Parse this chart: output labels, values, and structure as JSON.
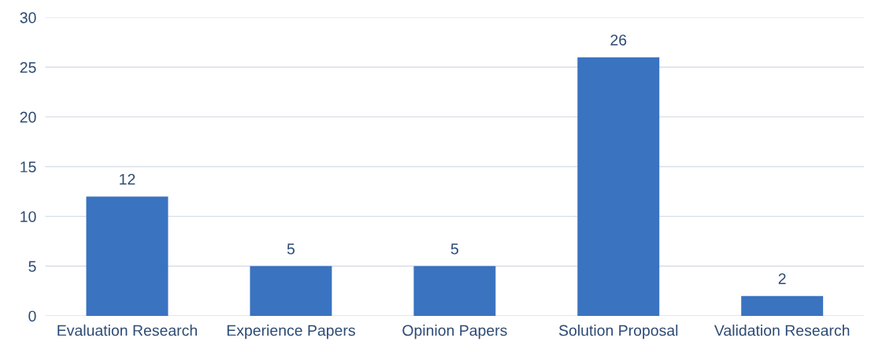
{
  "chart_data": {
    "type": "bar",
    "categories": [
      "Evaluation Research",
      "Experience Papers",
      "Opinion Papers",
      "Solution Proposal",
      "Validation Research"
    ],
    "values": [
      12,
      5,
      5,
      26,
      2
    ],
    "color": "#3a73c0",
    "ylim": [
      0,
      30
    ],
    "yticks": [
      0,
      5,
      10,
      15,
      20,
      25,
      30
    ],
    "grid": "y",
    "data_labels": true,
    "legend": false
  }
}
